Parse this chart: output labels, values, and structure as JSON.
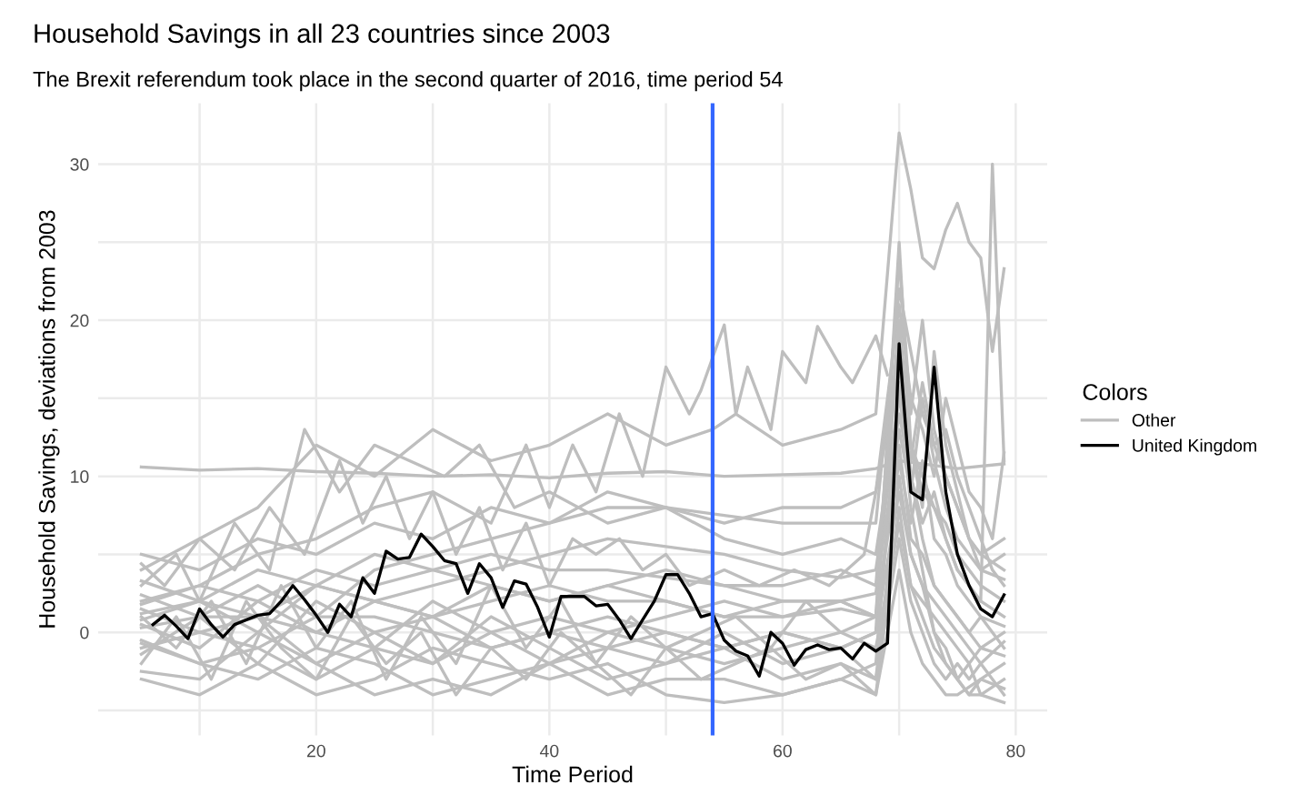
{
  "chart_data": {
    "type": "line",
    "title": "Household Savings in all 23 countries since 2003",
    "subtitle": "The Brexit referendum took place in the second quarter of 2016, time period 54",
    "xlabel": "Time Period",
    "ylabel": "Household Savings, deviations from 2003",
    "legend_title": "Colors",
    "legend": "right",
    "grid": true,
    "line_style": "solid",
    "marker": "none",
    "xlim": [
      1.3,
      82.7
    ],
    "ylim": [
      -6.6,
      33.9
    ],
    "xticks": [
      {
        "value": 10,
        "label": null
      },
      20,
      {
        "value": 30,
        "label": null
      },
      40,
      {
        "value": 50,
        "label": null
      },
      60,
      {
        "value": 70,
        "label": null
      },
      80
    ],
    "yticks": [
      {
        "value": -5,
        "label": null
      },
      0,
      {
        "value": 5,
        "label": null
      },
      10,
      {
        "value": 15,
        "label": null
      },
      20,
      {
        "value": 25,
        "label": null
      },
      30
    ],
    "ref_lines": [
      {
        "axis": "x",
        "value": 54,
        "label": null,
        "color": "#3366ff"
      }
    ],
    "series": [
      {
        "name": "Other",
        "color": "#bebebe",
        "x": [
          5,
          10,
          15,
          20,
          25,
          30,
          35,
          40,
          45,
          50,
          55,
          60,
          65,
          68,
          70,
          75,
          79
        ],
        "values": [
          10.6,
          10.4,
          10.5,
          10.3,
          10.2,
          10.0,
          10.1,
          9.9,
          10.2,
          10.3,
          10.0,
          10.1,
          10.2,
          10.5,
          11,
          10.5,
          10.8
        ]
      },
      {
        "color": "#bebebe",
        "x": [
          5,
          10,
          15,
          20,
          25,
          30,
          35,
          38,
          40,
          42,
          44,
          46,
          48,
          50,
          52,
          53,
          55,
          56,
          57,
          58,
          59,
          60,
          62,
          63,
          65,
          66,
          68,
          69
        ],
        "values": [
          2,
          3,
          5,
          6,
          8,
          9,
          7,
          12,
          8,
          12,
          9,
          14,
          10,
          17,
          14,
          15.5,
          19.7,
          14,
          17,
          15,
          13,
          18,
          16,
          19.6,
          17,
          16,
          19,
          16.5
        ]
      },
      {
        "color": "#bebebe",
        "x": [
          5,
          10,
          15,
          20,
          25,
          30,
          35,
          40,
          45,
          50,
          54,
          56,
          60,
          65,
          68,
          70,
          71,
          72,
          73,
          74,
          75,
          76,
          77,
          78,
          79
        ],
        "values": [
          4,
          6,
          8,
          12,
          10,
          13,
          11,
          12,
          14,
          12,
          13,
          14,
          12,
          13,
          14,
          32,
          28.4,
          24,
          23.3,
          25.8,
          27.5,
          25,
          24,
          18,
          23.3
        ]
      },
      {
        "color": "#bebebe",
        "x": [
          5,
          10,
          15,
          20,
          25,
          30,
          35,
          40,
          45,
          50,
          55,
          60,
          65,
          68,
          70,
          71,
          72,
          73,
          74,
          75,
          76,
          77,
          78,
          79
        ],
        "values": [
          -1,
          0,
          1,
          -2,
          0,
          1,
          -1,
          0,
          1,
          0,
          -1,
          0,
          -1,
          0,
          25,
          12,
          10,
          8,
          6,
          4,
          3,
          2,
          30,
          11
        ]
      },
      {
        "color": "#bebebe",
        "x": [
          5,
          8,
          10,
          13,
          16,
          19,
          22,
          25,
          28,
          31,
          34,
          37,
          40,
          45,
          50,
          55,
          60,
          65,
          68,
          70,
          71,
          72,
          73,
          74,
          75,
          76,
          77,
          78,
          79
        ],
        "values": [
          3,
          5,
          2,
          7,
          4,
          13,
          9,
          12,
          11,
          10,
          12,
          8,
          9,
          7,
          8,
          7,
          8,
          8,
          9,
          21,
          15,
          13,
          10,
          15,
          12,
          9,
          8,
          6,
          11.5
        ]
      },
      {
        "color": "#bebebe",
        "x": [
          5,
          10,
          15,
          20,
          25,
          30,
          35,
          40,
          45,
          50,
          55,
          60,
          65,
          68,
          70,
          71,
          72,
          73,
          74,
          75,
          76,
          77,
          79
        ],
        "values": [
          -0.5,
          -2,
          -3,
          -1,
          -2,
          -4,
          -3,
          -2,
          -4,
          -3,
          -3,
          -4,
          -3,
          -2,
          16,
          8,
          4,
          0,
          -2,
          -3,
          -4,
          -4,
          -4.5
        ]
      },
      {
        "color": "#bebebe",
        "x": [
          5,
          10,
          15,
          20,
          25,
          30,
          35,
          40,
          45,
          50,
          55,
          60,
          65,
          68,
          70,
          71,
          72,
          73,
          74,
          75,
          76,
          77,
          79
        ],
        "values": [
          1.2,
          2,
          0,
          3,
          2,
          3,
          4,
          5,
          6,
          5.5,
          5,
          4,
          3.5,
          4,
          14,
          10,
          7,
          9,
          6,
          4,
          3,
          2,
          1
        ]
      },
      {
        "color": "#bebebe",
        "x": [
          5,
          8,
          11,
          14,
          17,
          20,
          23,
          26,
          29,
          32,
          35,
          38,
          41,
          44,
          47,
          50,
          53,
          56,
          59,
          62,
          65,
          68,
          70,
          71,
          72,
          73,
          74,
          75,
          76,
          77,
          79
        ],
        "values": [
          -2,
          1,
          -3,
          2,
          -1,
          -3,
          1,
          -2,
          0,
          -4,
          -1,
          -3,
          0,
          -2,
          -4,
          -1,
          -3,
          -2,
          -1,
          -3,
          -2,
          -3,
          10,
          5,
          3,
          0,
          -1,
          -3,
          -2,
          -4,
          -3
        ]
      },
      {
        "color": "#bebebe",
        "x": [
          5,
          10,
          15,
          20,
          25,
          30,
          35,
          40,
          45,
          50,
          55,
          60,
          65,
          68,
          70,
          71,
          72,
          73,
          74,
          75,
          76,
          77,
          78,
          79
        ],
        "values": [
          2.4,
          1,
          3,
          1,
          4,
          5,
          6,
          7,
          8,
          8,
          7.5,
          7,
          7,
          7,
          22,
          18,
          14,
          12,
          13,
          10,
          8,
          6,
          4,
          3
        ]
      },
      {
        "color": "#bebebe",
        "x": [
          5,
          10,
          15,
          20,
          25,
          30,
          35,
          40,
          45,
          50,
          55,
          60,
          65,
          68,
          70,
          71,
          72,
          73,
          74,
          75,
          76,
          77,
          79
        ],
        "values": [
          0.5,
          -1,
          2,
          0,
          -1,
          2,
          0,
          1,
          0,
          1,
          2,
          1,
          1.5,
          1,
          12,
          6,
          5,
          3,
          2,
          1,
          0,
          -1,
          0
        ]
      },
      {
        "color": "#bebebe",
        "x": [
          5,
          7,
          10,
          13,
          16,
          19,
          22,
          24,
          26,
          28,
          30,
          32,
          34,
          36,
          38,
          40,
          42,
          44,
          46,
          48,
          50,
          52,
          55,
          58,
          61,
          64,
          67,
          70,
          71,
          72,
          73,
          74,
          75,
          76,
          77,
          79
        ],
        "values": [
          4.4,
          3,
          6,
          4,
          8,
          5,
          11,
          7,
          10,
          6,
          9,
          5,
          8,
          4,
          7,
          3,
          6,
          5,
          6,
          4,
          5,
          3,
          4,
          3,
          4,
          3,
          5,
          17,
          12,
          9,
          8,
          7,
          5,
          4,
          3,
          2
        ]
      },
      {
        "color": "#bebebe",
        "x": [
          5,
          10,
          15,
          20,
          25,
          30,
          35,
          40,
          45,
          50,
          55,
          60,
          65,
          68,
          70,
          71,
          72,
          73,
          74,
          75,
          76,
          77,
          79
        ],
        "values": [
          -3,
          -4,
          -2,
          -4,
          -3,
          -1,
          -2,
          -3,
          -2,
          -4,
          -4.5,
          -4,
          -3,
          -4,
          8,
          3,
          1,
          -1,
          -2,
          -3,
          -4,
          -3,
          -2
        ]
      },
      {
        "color": "#bebebe",
        "x": [
          5,
          8,
          11,
          14,
          17,
          20,
          23,
          26,
          29,
          32,
          35,
          38,
          41,
          44,
          47,
          50,
          53,
          56,
          59,
          62,
          65,
          68,
          70,
          71,
          72,
          73,
          74,
          75,
          76,
          77,
          79
        ],
        "values": [
          1,
          -1,
          2,
          -2,
          3,
          -1,
          2,
          -3,
          1,
          -2,
          3,
          -1,
          2,
          -2,
          1,
          -1,
          0,
          1,
          -1,
          2,
          0,
          1,
          19,
          10,
          6,
          3,
          2,
          1,
          0,
          1,
          -1
        ]
      },
      {
        "color": "#bebebe",
        "x": [
          5,
          10,
          15,
          20,
          25,
          30,
          35,
          40,
          45,
          50,
          55,
          60,
          65,
          68,
          70,
          71,
          72,
          73,
          74,
          75,
          76,
          77,
          79
        ],
        "values": [
          1.8,
          3,
          2,
          4,
          3,
          4,
          5,
          4,
          4,
          3.5,
          3,
          2,
          2,
          2.5,
          13,
          9,
          15,
          11,
          8,
          6,
          5,
          4,
          3.4
        ]
      },
      {
        "color": "#bebebe",
        "x": [
          5,
          10,
          15,
          20,
          25,
          30,
          35,
          40,
          45,
          50,
          55,
          60,
          65,
          68,
          70,
          71,
          72,
          73,
          74,
          75,
          76,
          77,
          79
        ],
        "values": [
          -1.4,
          1,
          -2,
          2,
          0,
          -2,
          1,
          -1,
          -3,
          -2,
          0,
          -2,
          -1,
          -3,
          6,
          2,
          0,
          -2,
          -3,
          -2,
          -3,
          -2,
          -4
        ]
      },
      {
        "color": "#bebebe",
        "x": [
          5,
          10,
          15,
          20,
          25,
          30,
          35,
          40,
          45,
          50,
          55,
          60,
          65,
          68,
          70,
          71,
          72,
          73,
          74,
          75,
          76,
          77,
          79
        ],
        "values": [
          0.3,
          1,
          1,
          0,
          2,
          1,
          2,
          3,
          2,
          2,
          1,
          2,
          2,
          1,
          24,
          14,
          20,
          13,
          10,
          8,
          6,
          5,
          4
        ]
      },
      {
        "color": "#bebebe",
        "x": [
          5,
          10,
          15,
          20,
          25,
          30,
          35,
          40,
          45,
          50,
          55,
          60,
          65,
          68,
          70,
          71,
          72,
          73,
          74,
          75,
          76,
          77,
          79
        ],
        "values": [
          5,
          4,
          6,
          5,
          7,
          6,
          8,
          7,
          9,
          8,
          6,
          5,
          6,
          5,
          15,
          11,
          16,
          12,
          10,
          8,
          6,
          4,
          5
        ]
      },
      {
        "color": "#bebebe",
        "x": [
          5,
          10,
          15,
          20,
          25,
          30,
          35,
          40,
          45,
          50,
          55,
          60,
          65,
          68,
          70,
          71,
          72,
          73,
          74,
          75,
          77,
          79
        ],
        "values": [
          -2.5,
          -3,
          0,
          -2,
          -4,
          -3,
          -4,
          -2,
          -1,
          -2,
          -1,
          -3,
          -2,
          -4,
          4,
          0,
          -2,
          -3,
          -4,
          -4,
          -3,
          -3.6
        ]
      },
      {
        "color": "#bebebe",
        "x": [
          5,
          10,
          15,
          20,
          25,
          30,
          35,
          40,
          45,
          50,
          55,
          60,
          65,
          68,
          70,
          71,
          72,
          73,
          74,
          75,
          76,
          77,
          79
        ],
        "values": [
          1.5,
          0,
          -1,
          1,
          1,
          0,
          -1,
          0,
          -1,
          0,
          -1,
          0,
          -1,
          0,
          9,
          5,
          3,
          2,
          1,
          0,
          -1,
          -2,
          -0.6
        ]
      },
      {
        "color": "#bebebe",
        "x": [
          5,
          10,
          15,
          20,
          25,
          30,
          35,
          40,
          45,
          50,
          55,
          60,
          65,
          68,
          70,
          71,
          72,
          73,
          74,
          75,
          76,
          77,
          79
        ],
        "values": [
          3.3,
          2,
          4,
          3,
          5,
          4,
          3,
          2,
          3,
          2,
          1,
          1,
          2,
          1,
          11,
          7,
          11,
          6,
          5,
          3,
          2,
          1,
          0.4
        ]
      },
      {
        "color": "#bebebe",
        "x": [
          5,
          10,
          15,
          20,
          25,
          30,
          35,
          40,
          45,
          50,
          55,
          60,
          65,
          68,
          70,
          71,
          72,
          73,
          74,
          75,
          76,
          77,
          79
        ],
        "values": [
          -0.7,
          -2,
          -1,
          -3,
          -1,
          -2,
          0,
          -2,
          0,
          -1,
          -2,
          -1,
          0,
          -1,
          7,
          3,
          2,
          1,
          0,
          -1,
          -2,
          -1,
          -1.5
        ]
      },
      {
        "color": "#bebebe",
        "x": [
          5,
          10,
          15,
          20,
          25,
          30,
          35,
          40,
          45,
          50,
          55,
          60,
          65,
          68,
          70,
          71,
          72,
          73,
          74,
          75,
          76,
          77,
          79
        ],
        "values": [
          0.8,
          2,
          1,
          3,
          2,
          1,
          3,
          2,
          3,
          4,
          3,
          3,
          4,
          3,
          20,
          12,
          8,
          18,
          12,
          9,
          6,
          5,
          6
        ]
      },
      {
        "name": "United Kingdom",
        "color": "#000000",
        "x": [
          6,
          7,
          8,
          9,
          10,
          11,
          12,
          13,
          14,
          15,
          16,
          17,
          18,
          19,
          20,
          21,
          22,
          23,
          24,
          25,
          26,
          27,
          28,
          29,
          30,
          31,
          32,
          33,
          34,
          35,
          36,
          37,
          38,
          39,
          40,
          41,
          42,
          43,
          44,
          45,
          46,
          47,
          48,
          49,
          50,
          51,
          52,
          53,
          54,
          55,
          56,
          57,
          58,
          59,
          60,
          61,
          62,
          63,
          64,
          65,
          66,
          67,
          68,
          69,
          70,
          71,
          72,
          73,
          74,
          75,
          76,
          77,
          78,
          79
        ],
        "values": [
          0.5,
          1.1,
          0.4,
          -0.4,
          1.5,
          0.5,
          -0.3,
          0.5,
          0.8,
          1.1,
          1.2,
          2.0,
          3.0,
          2.1,
          1.1,
          0,
          1.8,
          1.0,
          3.5,
          2.5,
          5.2,
          4.7,
          4.8,
          6.3,
          5.5,
          4.6,
          4.4,
          2.5,
          4.4,
          3.5,
          1.6,
          3.3,
          3.1,
          1.6,
          -0.3,
          2.3,
          2.3,
          2.3,
          1.7,
          1.8,
          0.8,
          -0.4,
          0.8,
          2.0,
          3.7,
          3.7,
          2.5,
          1.0,
          1.2,
          -0.5,
          -1.2,
          -1.5,
          -2.8,
          0,
          -0.7,
          -2.1,
          -1.1,
          -0.8,
          -1.1,
          -1.0,
          -1.7,
          -0.7,
          -1.2,
          -0.7,
          18.5,
          9,
          8.5,
          17,
          9,
          5,
          3,
          1.5,
          1,
          2.4
        ]
      }
    ]
  }
}
